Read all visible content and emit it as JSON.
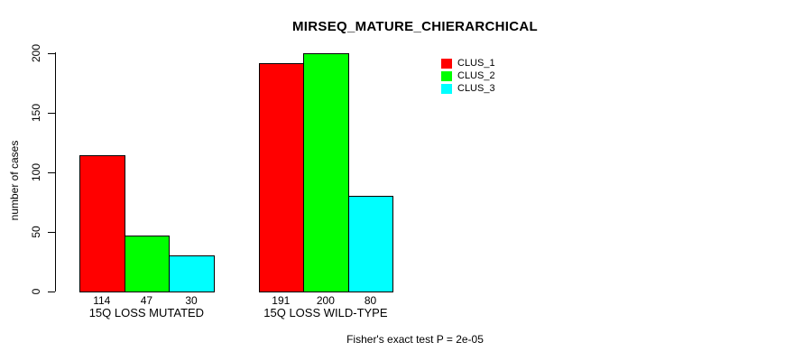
{
  "chart_data": {
    "type": "bar",
    "title": "MIRSEQ_MATURE_CHIERARCHICAL",
    "ylabel": "number of cases",
    "xlabel": "",
    "categories": [
      "15Q LOSS MUTATED",
      "15Q LOSS WILD-TYPE"
    ],
    "series": [
      {
        "name": "CLUS_1",
        "color": "#FF0000",
        "values": [
          114,
          191
        ]
      },
      {
        "name": "CLUS_2",
        "color": "#00FF00",
        "values": [
          47,
          200
        ]
      },
      {
        "name": "CLUS_3",
        "color": "#00FFFF",
        "values": [
          30,
          80
        ]
      }
    ],
    "yticks": [
      0,
      50,
      100,
      150,
      200
    ],
    "ylim": [
      0,
      200
    ],
    "grid": false,
    "legend_position": "top-right",
    "bar_value_labels_shown": true,
    "footnote": "Fisher's exact test P = 2e-05"
  }
}
